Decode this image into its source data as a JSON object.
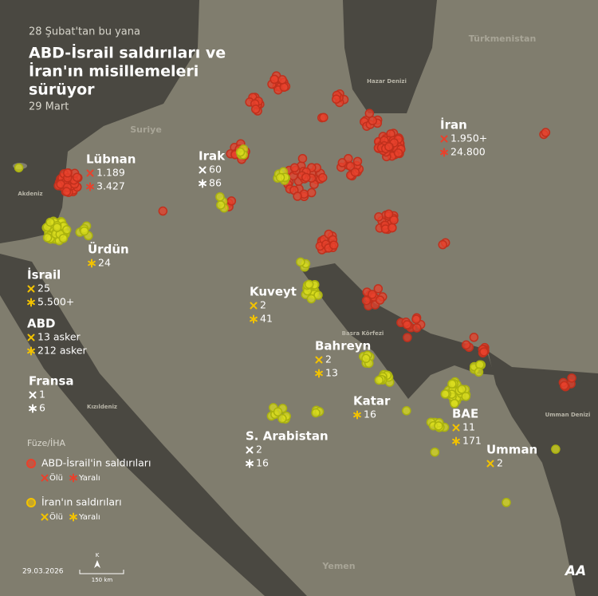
{
  "header": {
    "subtitle": "28 Şubat'tan bu yana",
    "title_lines": [
      "ABD-İsrail saldırıları ve",
      "İran'ın misillemeleri",
      "sürüyor"
    ],
    "date": "29 Mart"
  },
  "map_labels": [
    "Türkmenistan",
    "Hazar Denizi",
    "Suriye",
    "Akdeniz",
    "Basra Körfezi",
    "Kızıldeniz",
    "Umman Denizi",
    "Yemen"
  ],
  "stats": [
    {
      "name": "Lübnan",
      "color": "#e8412c",
      "killed": "1.189",
      "injured": "3.427"
    },
    {
      "name": "Irak",
      "color": "#ffffff",
      "killed": "60",
      "injured": "86"
    },
    {
      "name": "İran",
      "color": "#e8412c",
      "killed": "1.950+",
      "injured": "24.800"
    },
    {
      "name": "Ürdün",
      "color": "#f2c200",
      "injured": "24"
    },
    {
      "name": "İsrail",
      "color": "#f2c200",
      "killed": "25",
      "injured": "5.500+"
    },
    {
      "name": "ABD",
      "color": "#f2c200",
      "killed": "13 asker",
      "injured": "212 asker"
    },
    {
      "name": "Fransa",
      "color": "#ffffff",
      "killed": "1",
      "injured": "6"
    },
    {
      "name": "Kuveyt",
      "color": "#f2c200",
      "killed": "2",
      "injured": "41"
    },
    {
      "name": "Bahreyn",
      "color": "#f2c200",
      "killed": "2",
      "injured": "13"
    },
    {
      "name": "Katar",
      "color": "#f2c200",
      "injured": "16"
    },
    {
      "name": "S. Arabistan",
      "color": "#ffffff",
      "killed": "2",
      "injured": "16"
    },
    {
      "name": "BAE",
      "color": "#f2c200",
      "killed": "11",
      "injured": "171"
    },
    {
      "name": "Umman",
      "color": "#f2c200",
      "killed": "2"
    }
  ],
  "legend": {
    "title": "Füze/İHA",
    "groups": [
      {
        "label": "ABD-İsrail'in saldırıları",
        "color": "#e8412c",
        "killed": "Ölü",
        "injured": "Yaralı"
      },
      {
        "label": "İran'ın saldırıları",
        "color": "#f2c200",
        "killed": "Ölü",
        "injured": "Yaralı"
      }
    ]
  },
  "footer": {
    "date": "29.03.2026",
    "north": "K",
    "scale": "150 km",
    "logo": "AA"
  }
}
